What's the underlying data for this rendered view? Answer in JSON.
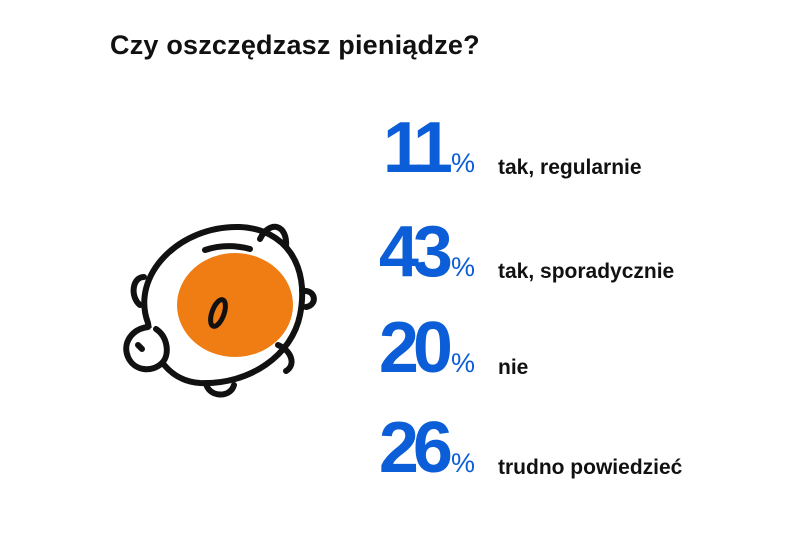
{
  "title": "Czy oszczędzasz pieniądze?",
  "percent_sign": "%",
  "colors": {
    "accent": "#0b5ed7",
    "piggy_fill": "#f07d14",
    "outline": "#111111"
  },
  "icon": "piggy-bank-icon",
  "chart_data": {
    "type": "bar",
    "title": "Czy oszczędzasz pieniądze?",
    "categories": [
      "tak, regularnie",
      "tak, sporadycznie",
      "nie",
      "trudno powiedzieć"
    ],
    "values": [
      11,
      43,
      20,
      26
    ],
    "unit": "%"
  }
}
